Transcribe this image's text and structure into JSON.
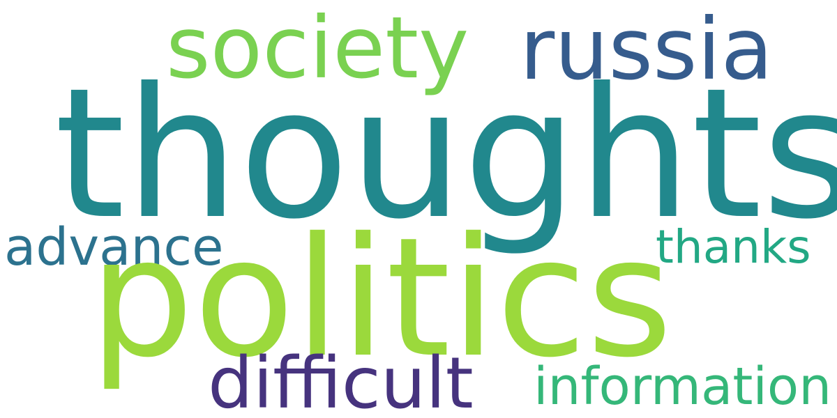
{
  "words": [
    {
      "text": "thoughts",
      "color": "#21888d"
    },
    {
      "text": "politics",
      "color": "#9bd93c"
    },
    {
      "text": "russia",
      "color": "#365c8d"
    },
    {
      "text": "society",
      "color": "#7ad151"
    },
    {
      "text": "difficult",
      "color": "#46337e"
    },
    {
      "text": "information",
      "color": "#35b779"
    },
    {
      "text": "advance",
      "color": "#2c728e"
    },
    {
      "text": "thanks",
      "color": "#22a884"
    }
  ]
}
